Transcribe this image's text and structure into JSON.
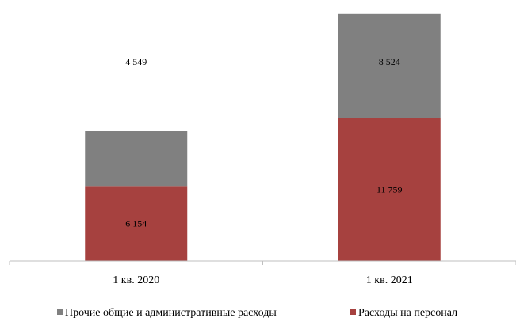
{
  "chart_data": {
    "type": "bar",
    "stacked": true,
    "categories": [
      "1 кв. 2020",
      "1 кв. 2021"
    ],
    "series": [
      {
        "name": "Расходы на персонал",
        "values": [
          6154,
          11759
        ],
        "labels": [
          "6 154",
          "11 759"
        ],
        "color": "#a6413f"
      },
      {
        "name": "Прочие общие и административные расходы",
        "values": [
          4549,
          8524
        ],
        "labels": [
          "4 549",
          "8 524"
        ],
        "color": "#808080"
      }
    ],
    "legend_order": [
      1,
      0
    ],
    "legend_position": "bottom",
    "grid": false,
    "title": "",
    "xlabel": "",
    "ylabel": ""
  }
}
